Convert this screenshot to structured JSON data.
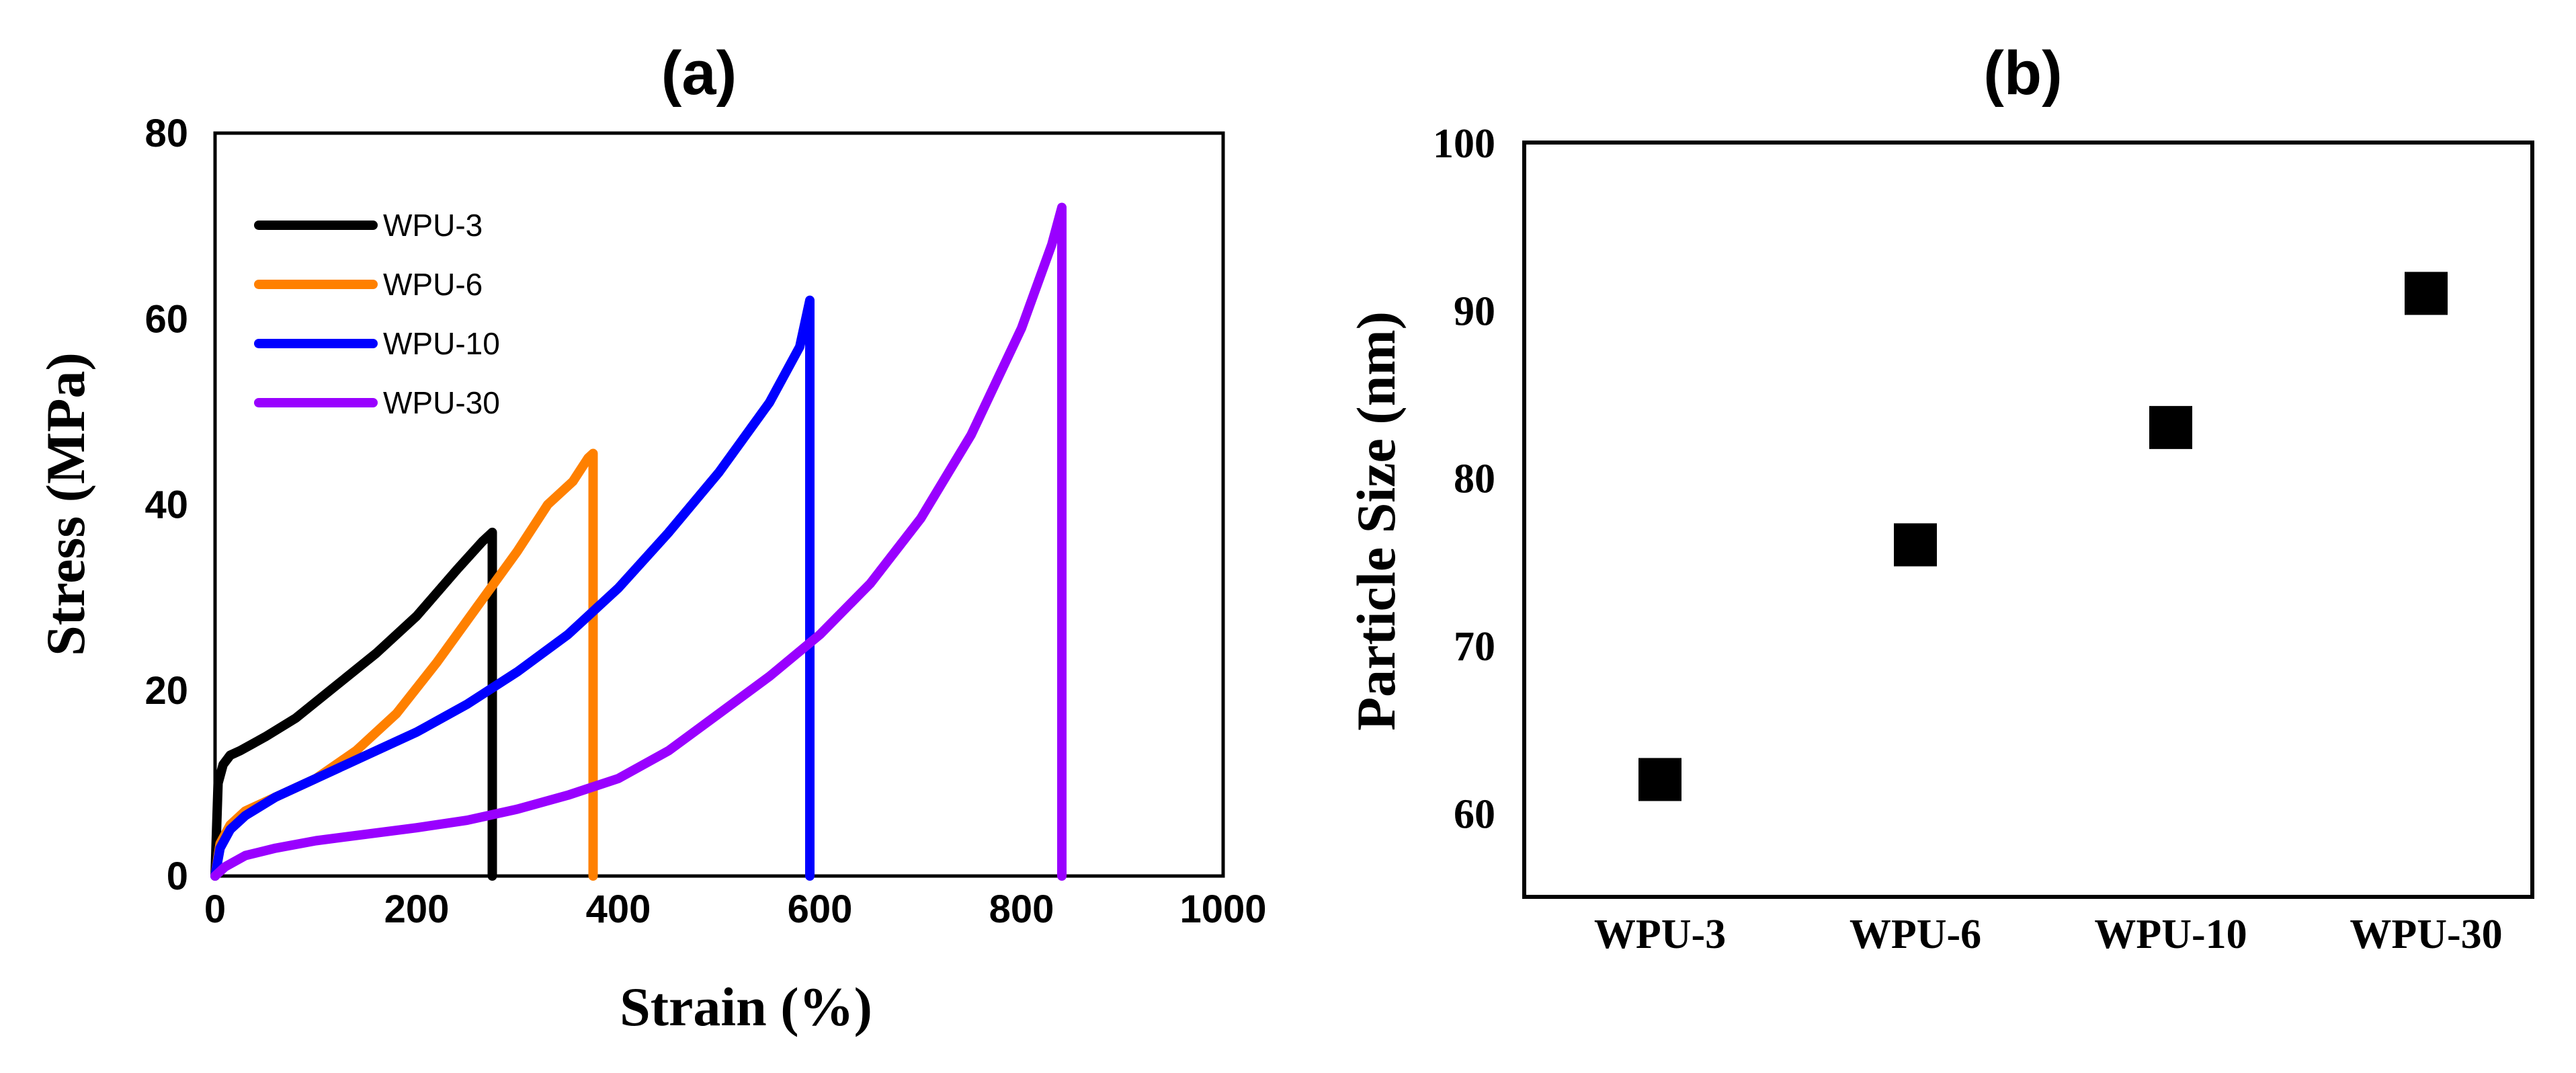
{
  "chart_data": [
    {
      "panel": "(a)",
      "type": "line",
      "title": "(a)",
      "xlabel": "Strain (%)",
      "ylabel": "Stress (MPa)",
      "xlim": [
        0,
        1000
      ],
      "ylim": [
        0,
        80
      ],
      "xticks": [
        "0",
        "200",
        "400",
        "600",
        "800",
        "1000"
      ],
      "yticks": [
        "0",
        "20",
        "40",
        "60",
        "80"
      ],
      "legend_position": "top-left",
      "series": [
        {
          "name": "WPU-3",
          "color": "#000000",
          "x": [
            0,
            3,
            8,
            15,
            25,
            50,
            80,
            120,
            160,
            200,
            240,
            265,
            275,
            275
          ],
          "y": [
            0,
            10,
            12,
            13,
            13.5,
            15,
            17,
            20.5,
            24,
            28,
            33,
            36,
            37,
            0
          ]
        },
        {
          "name": "WPU-6",
          "color": "#ff8000",
          "x": [
            0,
            5,
            15,
            30,
            60,
            100,
            140,
            180,
            220,
            260,
            300,
            330,
            355,
            370,
            375,
            375
          ],
          "y": [
            0,
            3.5,
            5.5,
            7,
            8.5,
            10.5,
            13.5,
            17.5,
            23,
            29,
            35,
            40,
            42.5,
            45,
            45.5,
            0
          ]
        },
        {
          "name": "WPU-10",
          "color": "#0000ff",
          "x": [
            0,
            5,
            15,
            30,
            60,
            100,
            150,
            200,
            250,
            300,
            350,
            400,
            450,
            500,
            550,
            580,
            590,
            590
          ],
          "y": [
            0,
            3,
            5,
            6.5,
            8.5,
            10.5,
            13,
            15.5,
            18.5,
            22,
            26,
            31,
            37,
            43.5,
            51,
            57,
            62,
            0
          ]
        },
        {
          "name": "WPU-30",
          "color": "#9900ff",
          "x": [
            0,
            10,
            30,
            60,
            100,
            150,
            200,
            250,
            300,
            350,
            400,
            450,
            500,
            550,
            600,
            650,
            700,
            750,
            800,
            830,
            840,
            840
          ],
          "y": [
            0,
            1,
            2.2,
            3,
            3.8,
            4.5,
            5.2,
            6,
            7.2,
            8.7,
            10.5,
            13.5,
            17.5,
            21.5,
            26,
            31.5,
            38.5,
            47.5,
            59,
            68,
            72,
            0
          ]
        }
      ]
    },
    {
      "panel": "(b)",
      "type": "scatter",
      "title": "(b)",
      "xlabel": "",
      "ylabel": "Particle Size (nm)",
      "ylim": [
        55,
        100
      ],
      "yticks": [
        "60",
        "70",
        "80",
        "90",
        "100"
      ],
      "categories": [
        "WPU-3",
        "WPU-6",
        "WPU-10",
        "WPU-30"
      ],
      "values": [
        62,
        76,
        83,
        91
      ],
      "marker": "square",
      "color": "#000000"
    }
  ]
}
